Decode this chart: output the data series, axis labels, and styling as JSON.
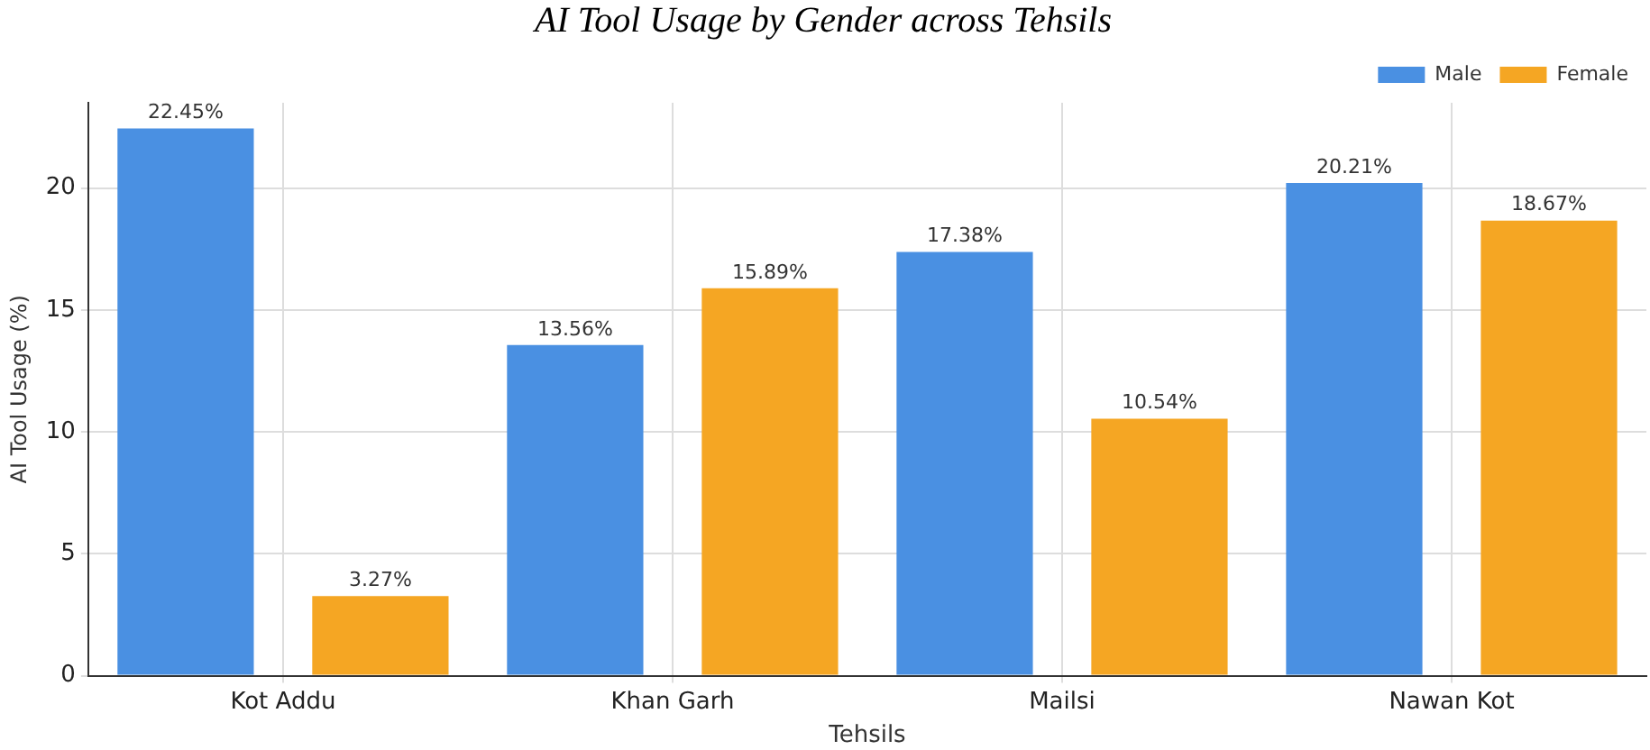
{
  "chart_data": {
    "type": "bar",
    "title": "AI Tool Usage by Gender across Tehsils",
    "xlabel": "Tehsils",
    "ylabel": "AI Tool Usage (%)",
    "categories": [
      "Kot Addu",
      "Khan Garh",
      "Mailsi",
      "Nawan Kot"
    ],
    "series": [
      {
        "name": "Male",
        "color": "#4a90e2",
        "values": [
          22.45,
          13.56,
          17.38,
          20.21
        ],
        "value_labels": [
          "22.45%",
          "13.56%",
          "17.38%",
          "20.21%"
        ]
      },
      {
        "name": "Female",
        "color": "#f5a623",
        "values": [
          3.27,
          15.89,
          10.54,
          18.67
        ],
        "value_labels": [
          "3.27%",
          "15.89%",
          "10.54%",
          "18.67%"
        ]
      }
    ],
    "ylim": [
      0,
      23.5
    ],
    "yticks": [
      0,
      5,
      10,
      15,
      20
    ],
    "grid": true,
    "legend": "top right"
  }
}
